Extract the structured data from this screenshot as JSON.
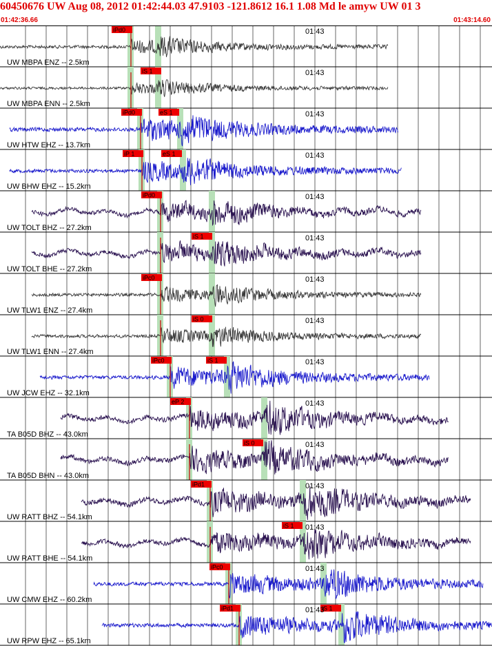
{
  "header": {
    "title": "60450676 UW Aug 08, 2012 01:42:44.03    47.9103 -121.8612 16.1 1.08 Md le amyw UW 01   3",
    "start_time": "01:42:36.66",
    "end_time": "01:43:14.60"
  },
  "colors": {
    "accel": "#3a3a3a",
    "short_period": "#1a1acc",
    "broadband": "#2a1250",
    "pick_box": "#ee0000",
    "pick_band": "#b8e0b8",
    "gridline": "#000000"
  },
  "minute_label": "01:43",
  "traces": [
    {
      "label": "UW MBPA ENZ -- 2.5km",
      "color": "accel",
      "start": 0.0,
      "end": 563,
      "amp": 14,
      "onset": 190,
      "s": 230,
      "picks": [
        {
          "text": "iPd0",
          "at": 190
        }
      ]
    },
    {
      "label": "UW MBPA ENN -- 2.5km",
      "color": "accel",
      "start": 0.0,
      "end": 563,
      "amp": 11,
      "onset": 190,
      "s": 230,
      "picks": [
        {
          "text": "iS 1",
          "at": 232
        }
      ]
    },
    {
      "label": "UW HTW EHZ -- 13.7km",
      "color": "short_period",
      "start": 14,
      "end": 578,
      "amp": 22,
      "onset": 204,
      "s": 262,
      "picks": [
        {
          "text": "iPd0",
          "at": 204
        },
        {
          "text": "eS 1",
          "at": 258
        }
      ]
    },
    {
      "label": "UW BHW EHZ -- 15.2km",
      "color": "short_period",
      "start": 14,
      "end": 583,
      "amp": 20,
      "onset": 206,
      "s": 266,
      "picks": [
        {
          "text": "iP 1",
          "at": 206
        },
        {
          "text": "eS 1",
          "at": 262
        }
      ]
    },
    {
      "label": "UW TOLT BHZ -- 27.2km",
      "color": "broadband",
      "start": 46,
      "end": 611,
      "amp": 18,
      "onset": 233,
      "s": 308,
      "picks": [
        {
          "text": "iPd0",
          "at": 233
        }
      ]
    },
    {
      "label": "UW TOLT BHE -- 27.2km",
      "color": "broadband",
      "start": 46,
      "end": 611,
      "amp": 19,
      "onset": 233,
      "s": 308,
      "picks": [
        {
          "text": "iS 1",
          "at": 306
        }
      ]
    },
    {
      "label": "UW TLW1 ENZ -- 27.4km",
      "color": "accel",
      "start": 46,
      "end": 611,
      "amp": 14,
      "onset": 233,
      "s": 308,
      "picks": [
        {
          "text": "iPc0",
          "at": 233
        }
      ]
    },
    {
      "label": "UW TLW1 ENN -- 27.4km",
      "color": "accel",
      "start": 46,
      "end": 611,
      "amp": 14,
      "onset": 233,
      "s": 308,
      "picks": [
        {
          "text": "iS 0",
          "at": 306
        }
      ]
    },
    {
      "label": "UW JCW EHZ -- 32.1km",
      "color": "short_period",
      "start": 58,
      "end": 623,
      "amp": 20,
      "onset": 247,
      "s": 330,
      "picks": [
        {
          "text": "iPc0",
          "at": 247
        },
        {
          "text": "iS 1",
          "at": 327
        }
      ]
    },
    {
      "label": "TA B05D BHZ -- 43.0km",
      "color": "broadband",
      "start": 88,
      "end": 651,
      "amp": 22,
      "onset": 275,
      "s": 384,
      "picks": [
        {
          "text": "eP 2",
          "at": 275
        }
      ]
    },
    {
      "label": "TA B05D BHN -- 43.0km",
      "color": "broadband",
      "start": 88,
      "end": 651,
      "amp": 22,
      "onset": 275,
      "s": 384,
      "picks": [
        {
          "text": "iS 0",
          "at": 380
        }
      ]
    },
    {
      "label": "UW RATT BHZ -- 54.1km",
      "color": "broadband",
      "start": 118,
      "end": 683,
      "amp": 24,
      "onset": 305,
      "s": 440,
      "picks": [
        {
          "text": "iPd1",
          "at": 305
        }
      ]
    },
    {
      "label": "UW RATT BHE -- 54.1km",
      "color": "broadband",
      "start": 118,
      "end": 683,
      "amp": 22,
      "onset": 305,
      "s": 440,
      "picks": [
        {
          "text": "iS 1",
          "at": 437
        }
      ]
    },
    {
      "label": "UW CMW EHZ -- 60.2km",
      "color": "short_period",
      "start": 136,
      "end": 701,
      "amp": 22,
      "onset": 332,
      "s": 470,
      "picks": [
        {
          "text": "iPc0",
          "at": 332
        }
      ]
    },
    {
      "label": "UW RPW EHZ -- 65.1km",
      "color": "short_period",
      "start": 148,
      "end": 714,
      "amp": 22,
      "onset": 347,
      "s": 496,
      "picks": [
        {
          "text": "iPd1",
          "at": 347
        },
        {
          "text": "iS 1",
          "at": 493
        }
      ]
    }
  ]
}
